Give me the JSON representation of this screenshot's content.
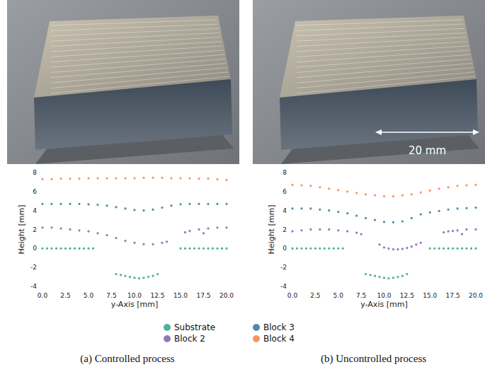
{
  "chart_data": [
    {
      "type": "scatter",
      "title": "(a) Controlled process",
      "x_label": "y-Axis [mm]",
      "y_label": "Height [mm]",
      "xlim": [
        0,
        20
      ],
      "ylim": [
        -4,
        8
      ],
      "xticks": [
        {
          "value": 0,
          "label": "0.0"
        },
        {
          "value": 2.5,
          "label": "2.5"
        },
        {
          "value": 5,
          "label": "5.0"
        },
        {
          "value": 7.5,
          "label": "7.5"
        },
        {
          "value": 10,
          "label": "10.0"
        },
        {
          "value": 12.5,
          "label": "12.5"
        },
        {
          "value": 15,
          "label": "15.0"
        },
        {
          "value": 17.5,
          "label": "17.5"
        },
        {
          "value": 20,
          "label": "20.0"
        }
      ],
      "yticks": [
        -4,
        -2,
        0,
        2,
        4,
        6,
        8
      ],
      "grid": false,
      "legend": "bottom",
      "marker": "circle",
      "series": [
        {
          "name": "Substrate",
          "color": "#1f9e80",
          "x": [
            0,
            0.5,
            1,
            1.5,
            2,
            2.5,
            3,
            3.5,
            4,
            4.5,
            5,
            5.5,
            8,
            8.5,
            9,
            9.5,
            10,
            10.5,
            11,
            11.5,
            12,
            12.5,
            15,
            15.5,
            16,
            16.5,
            17,
            17.5,
            18,
            18.5,
            19,
            19.5,
            20
          ],
          "values": [
            0,
            0,
            0,
            0,
            0,
            0,
            0,
            0,
            0,
            0,
            0,
            0,
            -2.7,
            -2.8,
            -2.9,
            -3.0,
            -3.1,
            -3.15,
            -3.1,
            -3.0,
            -2.9,
            -2.7,
            0,
            0,
            0,
            0,
            0,
            0,
            0,
            0,
            0,
            0,
            0
          ]
        },
        {
          "name": "Block 2",
          "color": "#7b55a6",
          "x": [
            0,
            1,
            2,
            3,
            4,
            5,
            6,
            7,
            8,
            9,
            10,
            11,
            12,
            13,
            13.5,
            15.5,
            16,
            17,
            17.5,
            18,
            19,
            20
          ],
          "values": [
            2.2,
            2.2,
            2.1,
            2.0,
            1.9,
            1.8,
            1.6,
            1.4,
            1.1,
            0.8,
            0.6,
            0.45,
            0.45,
            0.6,
            0.7,
            1.7,
            1.85,
            2.0,
            1.6,
            2.1,
            2.2,
            2.2
          ]
        },
        {
          "name": "Block 3",
          "color": "#23708c",
          "x": [
            0,
            1,
            2,
            3,
            4,
            5,
            6,
            7,
            8,
            9,
            10,
            11,
            12,
            13,
            14,
            15,
            16,
            17,
            18,
            19,
            20
          ],
          "values": [
            4.7,
            4.7,
            4.7,
            4.7,
            4.7,
            4.65,
            4.6,
            4.5,
            4.35,
            4.2,
            4.05,
            4.0,
            4.1,
            4.3,
            4.5,
            4.65,
            4.7,
            4.7,
            4.7,
            4.7,
            4.7
          ]
        },
        {
          "name": "Block 4",
          "color": "#f47b3a",
          "x": [
            0,
            1,
            2,
            3,
            4,
            5,
            6,
            7,
            8,
            9,
            10,
            11,
            12,
            13,
            14,
            15,
            16,
            17,
            18,
            19,
            20
          ],
          "values": [
            7.3,
            7.3,
            7.35,
            7.35,
            7.35,
            7.4,
            7.4,
            7.4,
            7.4,
            7.4,
            7.4,
            7.45,
            7.45,
            7.45,
            7.4,
            7.4,
            7.4,
            7.35,
            7.35,
            7.3,
            7.2
          ]
        }
      ]
    },
    {
      "type": "scatter",
      "title": "(b) Uncontrolled process",
      "x_label": "y-Axis [mm]",
      "y_label": "Height [mm]",
      "annotations": [
        "20 mm"
      ],
      "xlim": [
        0,
        20
      ],
      "ylim": [
        -4,
        8
      ],
      "xticks": [
        {
          "value": 0,
          "label": "0.0"
        },
        {
          "value": 2.5,
          "label": "2.5"
        },
        {
          "value": 5,
          "label": "5.0"
        },
        {
          "value": 7.5,
          "label": "7.5"
        },
        {
          "value": 10,
          "label": "10.0"
        },
        {
          "value": 12.5,
          "label": "12.5"
        },
        {
          "value": 15,
          "label": "15.0"
        },
        {
          "value": 17.5,
          "label": "17.5"
        },
        {
          "value": 20,
          "label": "20.0"
        }
      ],
      "yticks": [
        -4,
        -2,
        0,
        2,
        4,
        6,
        8
      ],
      "grid": false,
      "legend": "bottom",
      "marker": "circle",
      "series": [
        {
          "name": "Substrate",
          "color": "#1f9e80",
          "x": [
            0,
            0.5,
            1,
            1.5,
            2,
            2.5,
            3,
            3.5,
            4,
            4.5,
            5,
            5.5,
            8,
            8.5,
            9,
            9.5,
            10,
            10.5,
            11,
            11.5,
            12,
            12.5,
            15,
            15.5,
            16,
            16.5,
            17,
            17.5,
            18,
            18.5,
            19,
            19.5,
            20
          ],
          "values": [
            0,
            0,
            0,
            0,
            0,
            0,
            0,
            0,
            0,
            0,
            0,
            0,
            -2.7,
            -2.8,
            -2.9,
            -3.0,
            -3.1,
            -3.15,
            -3.1,
            -3.0,
            -2.9,
            -2.7,
            0,
            0,
            0,
            0,
            0,
            0,
            0,
            0,
            0,
            0,
            0
          ]
        },
        {
          "name": "Block 2",
          "color": "#7b55a6",
          "x": [
            0,
            1,
            2,
            3,
            4,
            5,
            6,
            7,
            7.5,
            9.5,
            10,
            10.5,
            11,
            11.5,
            12,
            12.5,
            13,
            13.5,
            14,
            16.5,
            17,
            17.5,
            18,
            18.5,
            19,
            20
          ],
          "values": [
            1.8,
            1.9,
            2.0,
            2.0,
            2.0,
            1.9,
            1.8,
            1.65,
            1.5,
            0.4,
            0.1,
            0.0,
            -0.1,
            -0.1,
            -0.05,
            0.05,
            0.2,
            0.4,
            0.6,
            1.7,
            1.8,
            1.85,
            1.9,
            1.5,
            2.0,
            2.0
          ]
        },
        {
          "name": "Block 3",
          "color": "#23708c",
          "x": [
            0,
            1,
            2,
            3,
            4,
            5,
            6,
            7,
            8,
            9,
            10,
            11,
            12,
            13,
            14,
            15,
            16,
            17,
            18,
            19,
            20
          ],
          "values": [
            4.2,
            4.2,
            4.2,
            4.1,
            4.0,
            3.85,
            3.7,
            3.45,
            3.2,
            3.0,
            2.8,
            2.75,
            2.85,
            3.2,
            3.6,
            3.8,
            3.95,
            4.1,
            4.2,
            4.25,
            4.3
          ]
        },
        {
          "name": "Block 4",
          "color": "#f47b3a",
          "x": [
            0,
            1,
            2,
            3,
            4,
            5,
            6,
            7,
            8,
            9,
            10,
            11,
            12,
            13,
            14,
            15,
            16,
            17,
            18,
            19,
            20
          ],
          "values": [
            6.7,
            6.65,
            6.6,
            6.45,
            6.3,
            6.15,
            6.0,
            5.85,
            5.7,
            5.6,
            5.5,
            5.5,
            5.6,
            5.7,
            5.9,
            6.1,
            6.3,
            6.45,
            6.6,
            6.65,
            6.7
          ]
        }
      ]
    }
  ]
}
